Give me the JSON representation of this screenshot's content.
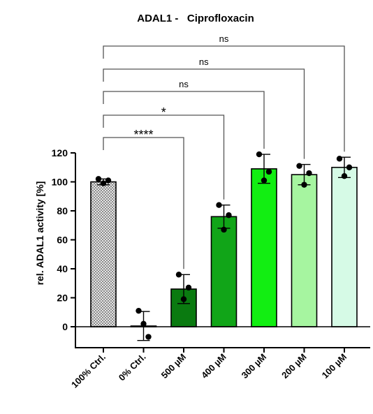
{
  "chart_data": {
    "type": "bar",
    "title": "ADAL1 -   Ciprofloxacin",
    "ylabel": "rel. ADAL1 activity [%]",
    "xlabel": "",
    "ylim": [
      0,
      120
    ],
    "yticks": [
      0,
      20,
      40,
      60,
      80,
      100,
      120
    ],
    "categories": [
      "100% Ctrl.",
      "0% Ctrl.",
      "500 µM",
      "400 µM",
      "300 µM",
      "200 µM",
      "100 µM"
    ],
    "values": [
      100,
      0.5,
      26,
      76,
      109,
      105,
      110
    ],
    "errors": [
      2,
      10,
      10,
      8,
      10,
      7,
      7
    ],
    "points": [
      [
        102,
        99,
        101
      ],
      [
        11,
        2,
        -7
      ],
      [
        36,
        19,
        27
      ],
      [
        84,
        67,
        77
      ],
      [
        119,
        101,
        107
      ],
      [
        111,
        98,
        106
      ],
      [
        116,
        104,
        110
      ]
    ],
    "bar_colors": [
      "#c8c8c8",
      "#ffffff",
      "#0a7a10",
      "#11a518",
      "#12ee12",
      "#a6f5a0",
      "#d6fae6"
    ],
    "bar_pattern_first": "checkered",
    "comparisons": [
      {
        "from": "100% Ctrl.",
        "to": "500 µM",
        "label": "****"
      },
      {
        "from": "100% Ctrl.",
        "to": "400 µM",
        "label": "*"
      },
      {
        "from": "100% Ctrl.",
        "to": "300 µM",
        "label": "ns"
      },
      {
        "from": "100% Ctrl.",
        "to": "200 µM",
        "label": "ns"
      },
      {
        "from": "100% Ctrl.",
        "to": "100 µM",
        "label": "ns"
      }
    ],
    "grid": false,
    "legend": "none"
  }
}
